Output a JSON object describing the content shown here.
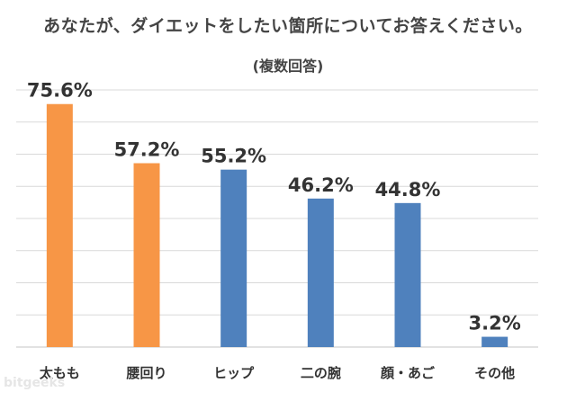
{
  "chart_data": {
    "type": "bar",
    "title": "あなたが、ダイエットをしたい箇所についてお答えください。",
    "subtitle": "(複数回答)",
    "categories": [
      "太もも",
      "腰回り",
      "ヒップ",
      "二の腕",
      "顔・あご",
      "その他"
    ],
    "values": [
      75.6,
      57.2,
      55.2,
      46.2,
      44.8,
      3.2
    ],
    "value_labels": [
      "75.6%",
      "57.2%",
      "55.2%",
      "46.2%",
      "44.8%",
      "3.2%"
    ],
    "bar_colors": [
      "#F79646",
      "#F79646",
      "#4F81BD",
      "#4F81BD",
      "#4F81BD",
      "#4F81BD"
    ],
    "gridline_color": "#D9D9D9",
    "ylim": [
      0,
      80
    ],
    "y_tick_step": 10,
    "grid": true,
    "xlabel": "",
    "ylabel": ""
  },
  "watermark": "bitgeeks"
}
